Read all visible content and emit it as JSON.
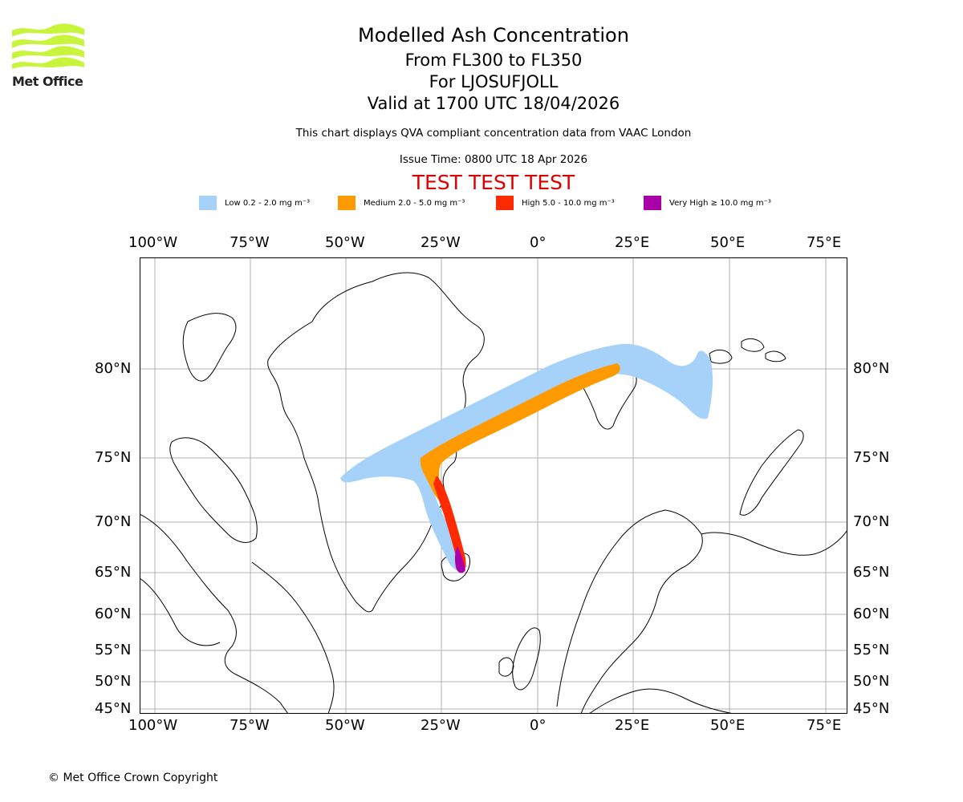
{
  "header": {
    "logo_text": "Met Office",
    "title": "Modelled Ash Concentration",
    "flight_levels": "From FL300 to FL350",
    "volcano": "For LJOSUFJOLL",
    "valid_time": "Valid at 1700 UTC 18/04/2026",
    "description": "This chart displays QVA compliant concentration data from VAAC London",
    "issue_time": "Issue Time: 0800 UTC 18 Apr 2026",
    "test_banner": "TEST TEST TEST"
  },
  "legend": [
    {
      "label": "Low 0.2 - 2.0 mg m⁻³",
      "color": "#a6d2fa"
    },
    {
      "label": "Medium 2.0 - 5.0 mg m⁻³",
      "color": "#ff9a00"
    },
    {
      "label": "High 5.0 - 10.0 mg m⁻³",
      "color": "#ff2a00"
    },
    {
      "label": "Very High  ≥  10.0 mg m⁻³",
      "color": "#aa00aa"
    }
  ],
  "axes": {
    "lon_labels": [
      "100°W",
      "75°W",
      "50°W",
      "25°W",
      "0°",
      "25°E",
      "50°E",
      "75°E"
    ],
    "lat_labels": [
      "80°N",
      "75°N",
      "70°N",
      "65°N",
      "60°N",
      "55°N",
      "50°N",
      "45°N"
    ]
  },
  "colors": {
    "test_banner": "#dd0000",
    "logo": "#c8f53c",
    "grid": "#b0b0b0"
  },
  "footer": {
    "copyright": "© Met Office Crown Copyright"
  }
}
